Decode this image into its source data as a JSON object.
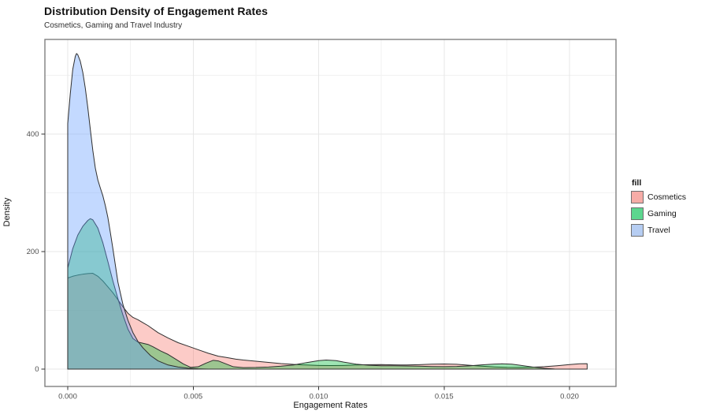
{
  "chart_data": {
    "type": "area",
    "title": "Distribution Density of Engagement Rates",
    "subtitle": "Cosmetics, Gaming and Travel Industry",
    "xlabel": "Engagement Rates",
    "ylabel": "Density",
    "legend": {
      "title": "fill",
      "position": "right",
      "entries": [
        "Cosmetics",
        "Gaming",
        "Travel"
      ]
    },
    "x_ticks": {
      "values": [
        0,
        0.005,
        0.01,
        0.015,
        0.02
      ],
      "labels": [
        "0.000",
        "0.005",
        "0.010",
        "0.015",
        "0.020"
      ]
    },
    "y_ticks": {
      "values": [
        0,
        200,
        400
      ],
      "labels": [
        "0",
        "200",
        "400"
      ]
    },
    "x_minor": [
      0.0025,
      0.0075,
      0.0125,
      0.0175
    ],
    "y_minor": [
      100,
      300,
      500
    ],
    "xlim": [
      -0.00091,
      0.02185
    ],
    "ylim": [
      -29.5,
      561
    ],
    "grid": true,
    "fill_alpha": 0.38,
    "stroke_color": "#2f2f2f",
    "series": [
      {
        "name": "Cosmetics",
        "color": "#F8766D",
        "swatch": "#F6ACA7",
        "points": [
          [
            0,
            155
          ],
          [
            0.0002,
            158
          ],
          [
            0.0004,
            160
          ],
          [
            0.0006,
            161.5
          ],
          [
            0.0008,
            162.5
          ],
          [
            0.001,
            163
          ],
          [
            0.0012,
            158
          ],
          [
            0.0014,
            150
          ],
          [
            0.0016,
            140
          ],
          [
            0.0018,
            130
          ],
          [
            0.002,
            118
          ],
          [
            0.0022,
            106
          ],
          [
            0.0024,
            95
          ],
          [
            0.0026,
            88
          ],
          [
            0.0028,
            84
          ],
          [
            0.003,
            79
          ],
          [
            0.0032,
            74
          ],
          [
            0.0036,
            62
          ],
          [
            0.004,
            53
          ],
          [
            0.0044,
            45
          ],
          [
            0.0048,
            39
          ],
          [
            0.0052,
            33
          ],
          [
            0.0056,
            27
          ],
          [
            0.006,
            22
          ],
          [
            0.0063,
            20
          ],
          [
            0.0067,
            17
          ],
          [
            0.007,
            15.5
          ],
          [
            0.0075,
            13.5
          ],
          [
            0.008,
            11.5
          ],
          [
            0.0085,
            9.5
          ],
          [
            0.009,
            8
          ],
          [
            0.0095,
            7
          ],
          [
            0.01,
            6.3
          ],
          [
            0.0105,
            6
          ],
          [
            0.011,
            6.3
          ],
          [
            0.0115,
            7
          ],
          [
            0.012,
            7.6
          ],
          [
            0.0125,
            7.8
          ],
          [
            0.013,
            7.2
          ],
          [
            0.0135,
            7
          ],
          [
            0.014,
            7.6
          ],
          [
            0.0145,
            8.4
          ],
          [
            0.015,
            8.8
          ],
          [
            0.0155,
            8.2
          ],
          [
            0.016,
            6.5
          ],
          [
            0.0165,
            5
          ],
          [
            0.017,
            3.8
          ],
          [
            0.0175,
            3
          ],
          [
            0.018,
            2.8
          ],
          [
            0.0185,
            3.2
          ],
          [
            0.019,
            4.2
          ],
          [
            0.0195,
            5.8
          ],
          [
            0.02,
            7.8
          ],
          [
            0.0204,
            9
          ],
          [
            0.0207,
            9.2
          ]
        ]
      },
      {
        "name": "Gaming",
        "color": "#00BA38",
        "swatch": "#5CD68E",
        "points": [
          [
            0,
            172
          ],
          [
            0.0002,
            205
          ],
          [
            0.0004,
            228
          ],
          [
            0.0006,
            243
          ],
          [
            0.0008,
            253
          ],
          [
            0.0009,
            256
          ],
          [
            0.001,
            254
          ],
          [
            0.0012,
            240
          ],
          [
            0.0014,
            215
          ],
          [
            0.0016,
            183
          ],
          [
            0.0018,
            150
          ],
          [
            0.002,
            120
          ],
          [
            0.0022,
            92
          ],
          [
            0.0024,
            68
          ],
          [
            0.0026,
            52
          ],
          [
            0.0028,
            46
          ],
          [
            0.003,
            44
          ],
          [
            0.0032,
            42
          ],
          [
            0.0034,
            38
          ],
          [
            0.0037,
            31
          ],
          [
            0.004,
            25
          ],
          [
            0.0043,
            17
          ],
          [
            0.0046,
            9
          ],
          [
            0.0049,
            3
          ],
          [
            0.0052,
            4
          ],
          [
            0.0055,
            10
          ],
          [
            0.0058,
            15
          ],
          [
            0.006,
            14
          ],
          [
            0.0063,
            9
          ],
          [
            0.0066,
            4
          ],
          [
            0.007,
            2.6
          ],
          [
            0.0075,
            2.8
          ],
          [
            0.008,
            3.6
          ],
          [
            0.0085,
            5
          ],
          [
            0.009,
            7
          ],
          [
            0.0095,
            11
          ],
          [
            0.01,
            14.5
          ],
          [
            0.0103,
            15.5
          ],
          [
            0.0107,
            14.5
          ],
          [
            0.011,
            12
          ],
          [
            0.0115,
            8.5
          ],
          [
            0.012,
            6.5
          ],
          [
            0.0125,
            5.8
          ],
          [
            0.013,
            5.8
          ],
          [
            0.0135,
            5.4
          ],
          [
            0.014,
            5
          ],
          [
            0.0145,
            4.4
          ],
          [
            0.015,
            4.2
          ],
          [
            0.0155,
            4.6
          ],
          [
            0.016,
            5.6
          ],
          [
            0.0165,
            7.2
          ],
          [
            0.017,
            8.6
          ],
          [
            0.0173,
            9
          ],
          [
            0.0177,
            8.4
          ],
          [
            0.018,
            6.8
          ],
          [
            0.0185,
            3.8
          ],
          [
            0.019,
            1.4
          ],
          [
            0.0194,
            0.2
          ]
        ]
      },
      {
        "name": "Travel",
        "color": "#619CFF",
        "swatch": "#B6CDF2",
        "points": [
          [
            0,
            418
          ],
          [
            0.0001,
            468
          ],
          [
            0.0002,
            510
          ],
          [
            0.0003,
            532
          ],
          [
            0.00035,
            537
          ],
          [
            0.0004,
            535
          ],
          [
            0.0005,
            524
          ],
          [
            0.0006,
            505
          ],
          [
            0.0007,
            478
          ],
          [
            0.0008,
            445
          ],
          [
            0.0009,
            408
          ],
          [
            0.001,
            372
          ],
          [
            0.0011,
            342
          ],
          [
            0.0012,
            322
          ],
          [
            0.0013,
            308
          ],
          [
            0.0014,
            295
          ],
          [
            0.0015,
            278
          ],
          [
            0.0016,
            258
          ],
          [
            0.0017,
            232
          ],
          [
            0.0018,
            205
          ],
          [
            0.002,
            148
          ],
          [
            0.0022,
            110
          ],
          [
            0.0024,
            83
          ],
          [
            0.0026,
            62
          ],
          [
            0.0028,
            47
          ],
          [
            0.003,
            36
          ],
          [
            0.0033,
            23
          ],
          [
            0.0036,
            14
          ],
          [
            0.004,
            7
          ],
          [
            0.0044,
            3.5
          ],
          [
            0.0048,
            1.5
          ],
          [
            0.0052,
            0.5
          ],
          [
            0.0056,
            0
          ]
        ]
      }
    ]
  }
}
